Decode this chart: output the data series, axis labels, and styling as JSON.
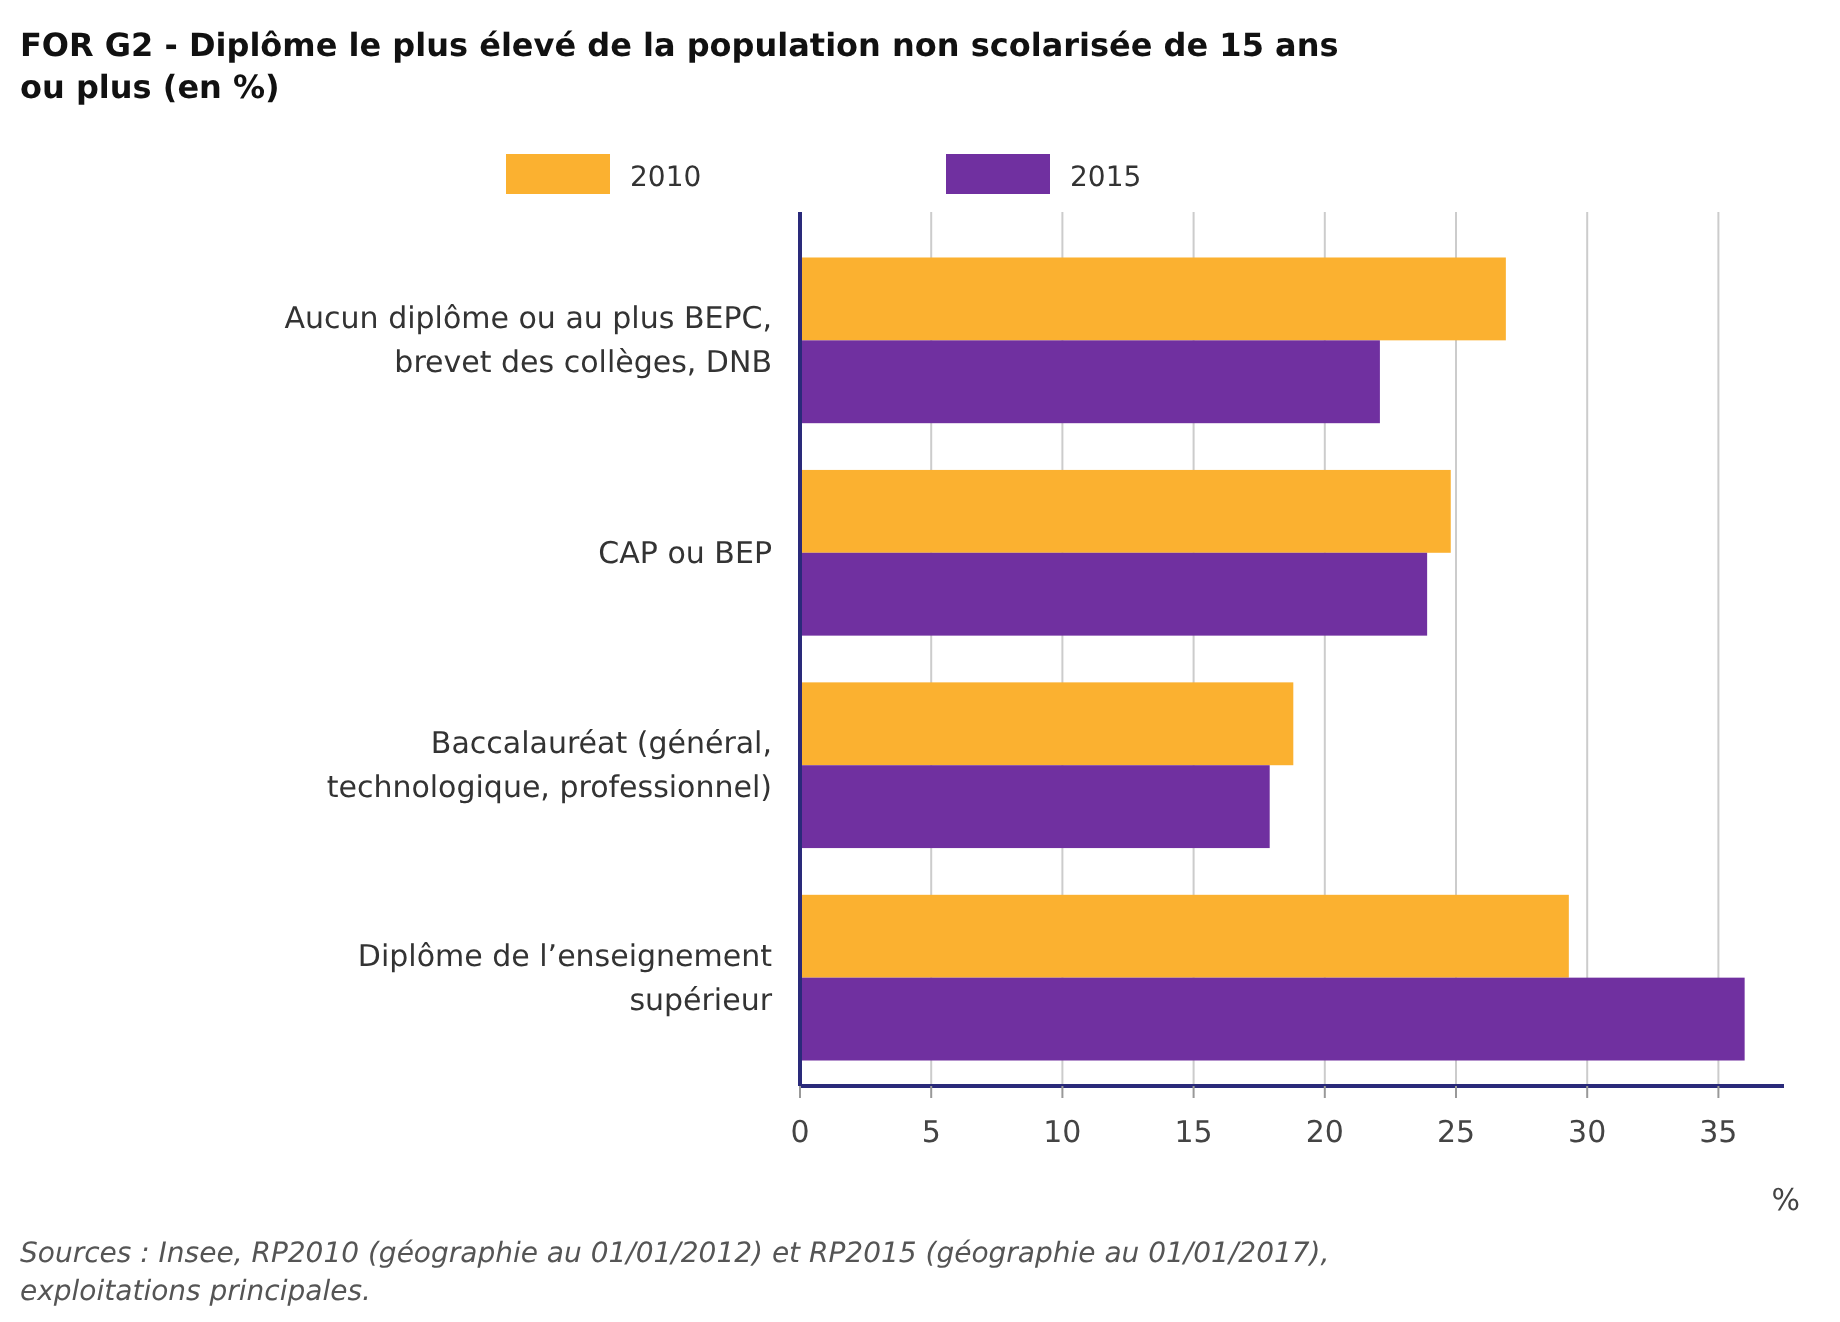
{
  "chart_data": {
    "type": "bar",
    "orientation": "horizontal",
    "title": "FOR G2 - Diplôme le plus élevé de la population non scolarisée de 15 ans ou plus (en %)",
    "xlabel": "%",
    "categories": [
      "Aucun diplôme ou au plus BEPC, brevet des collèges, DNB",
      "CAP ou BEP",
      "Baccalauréat (général, technologique, professionnel)",
      "Diplôme de l’enseignement supérieur"
    ],
    "series": [
      {
        "name": "2010",
        "color": "#fbb130",
        "values": [
          26.9,
          24.8,
          18.8,
          29.3
        ]
      },
      {
        "name": "2015",
        "color": "#7030a0",
        "values": [
          22.1,
          23.9,
          17.9,
          36.0
        ]
      }
    ],
    "xlim": [
      0,
      37.5
    ],
    "xticks": [
      0,
      5,
      10,
      15,
      20,
      25,
      30,
      35
    ],
    "grid": "x",
    "legend": "top",
    "annotations": [
      "Sources : Insee, RP2010 (géographie au 01/01/2012) et RP2015 (géographie au 01/01/2017), exploitations principales."
    ]
  }
}
